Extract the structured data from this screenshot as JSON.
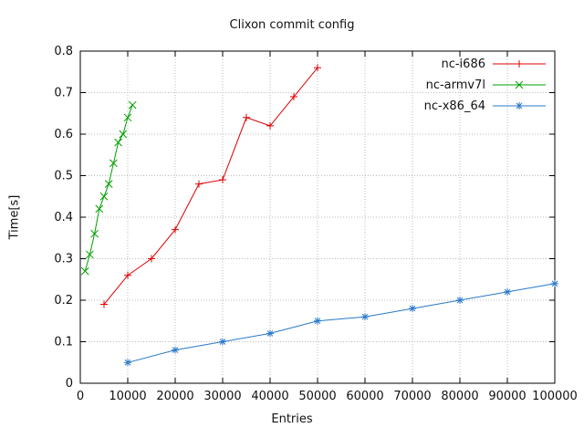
{
  "chart_data": {
    "type": "line",
    "title": "Clixon commit config",
    "xlabel": "Entries",
    "ylabel": "Time[s]",
    "xlim": [
      0,
      100000
    ],
    "ylim": [
      0,
      0.8
    ],
    "xticks": [
      0,
      10000,
      20000,
      30000,
      40000,
      50000,
      60000,
      70000,
      80000,
      90000,
      100000
    ],
    "yticks": [
      0,
      0.1,
      0.2,
      0.3,
      0.4,
      0.5,
      0.6,
      0.7,
      0.8
    ],
    "grid": true,
    "legend_position": "top-right-inside",
    "colors": {
      "border": "#000000",
      "grid": "#bbbbbb",
      "background": "#ffffff"
    },
    "series": [
      {
        "name": "nc-i686",
        "color": "#dd0000",
        "marker": "plus",
        "points": [
          [
            5000,
            0.19
          ],
          [
            10000,
            0.26
          ],
          [
            15000,
            0.3
          ],
          [
            20000,
            0.37
          ],
          [
            25000,
            0.48
          ],
          [
            30000,
            0.49
          ],
          [
            35000,
            0.64
          ],
          [
            40000,
            0.62
          ],
          [
            45000,
            0.69
          ],
          [
            50000,
            0.76
          ]
        ]
      },
      {
        "name": "nc-armv7l",
        "color": "#00a000",
        "marker": "cross",
        "points": [
          [
            1000,
            0.27
          ],
          [
            2000,
            0.31
          ],
          [
            3000,
            0.36
          ],
          [
            4000,
            0.42
          ],
          [
            5000,
            0.45
          ],
          [
            6000,
            0.48
          ],
          [
            7000,
            0.53
          ],
          [
            8000,
            0.58
          ],
          [
            9000,
            0.6
          ],
          [
            10000,
            0.64
          ],
          [
            11000,
            0.67
          ]
        ]
      },
      {
        "name": "nc-x86_64",
        "color": "#2878c8",
        "marker": "asterisk",
        "points": [
          [
            10000,
            0.05
          ],
          [
            20000,
            0.08
          ],
          [
            30000,
            0.1
          ],
          [
            40000,
            0.12
          ],
          [
            50000,
            0.15
          ],
          [
            60000,
            0.16
          ],
          [
            70000,
            0.18
          ],
          [
            80000,
            0.2
          ],
          [
            90000,
            0.22
          ],
          [
            100000,
            0.24
          ]
        ]
      }
    ]
  }
}
